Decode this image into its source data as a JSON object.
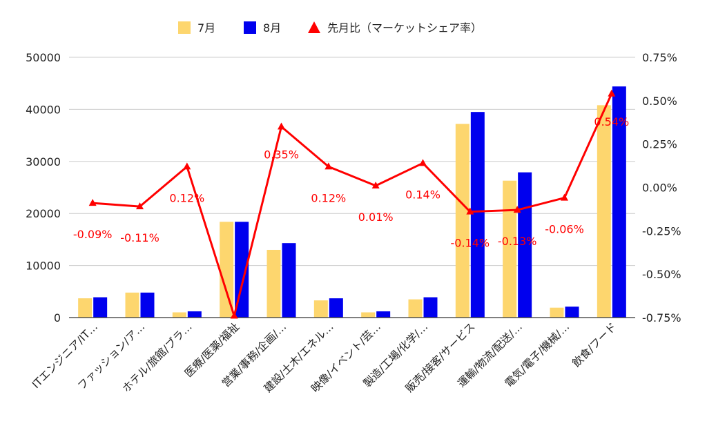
{
  "chart_data": {
    "type": "bar",
    "categories": [
      "ITエンジニア/IT…",
      "ファッション/ア…",
      "ホテル/旅館/ブラ…",
      "医療/医薬/福祉",
      "営業/事務/企画/…",
      "建設/土木/エネル…",
      "映像/イベント/芸…",
      "製造/工場/化学/…",
      "販売/接客/サービス",
      "運輸/物流/配送/…",
      "電気/電子/機械/…",
      "飲食/フード"
    ],
    "series": [
      {
        "name": "7月",
        "type": "bar",
        "axis": "left",
        "color": "#fdd66e",
        "values": [
          3700,
          4800,
          1000,
          18400,
          13000,
          3300,
          1000,
          3500,
          37200,
          26300,
          1900,
          40800
        ]
      },
      {
        "name": "8月",
        "type": "bar",
        "axis": "left",
        "color": "#0000ee",
        "values": [
          3900,
          4800,
          1200,
          18400,
          14300,
          3700,
          1200,
          3900,
          39500,
          27900,
          2100,
          44400
        ]
      },
      {
        "name": "先月比（マーケットシェア率）",
        "type": "line",
        "axis": "right",
        "color": "#ff0000",
        "values": [
          -0.09,
          -0.11,
          0.12,
          -0.74,
          0.35,
          0.12,
          0.01,
          0.14,
          -0.14,
          -0.13,
          -0.06,
          0.54
        ],
        "labels": [
          "-0.09%",
          "-0.11%",
          "0.12%",
          "",
          "0.35%",
          "0.12%",
          "0.01%",
          "0.14%",
          "-0.14%",
          "-0.13%",
          "-0.06%",
          "0.54%"
        ]
      }
    ],
    "y_left": {
      "min": 0,
      "max": 50000,
      "ticks": [
        "0",
        "10000",
        "20000",
        "30000",
        "40000",
        "50000"
      ]
    },
    "y_right": {
      "min": -0.75,
      "max": 0.75,
      "ticks": [
        "-0.75%",
        "-0.50%",
        "-0.25%",
        "0.00%",
        "0.25%",
        "0.50%",
        "0.75%"
      ]
    },
    "grid": true,
    "legend_position": "top"
  }
}
